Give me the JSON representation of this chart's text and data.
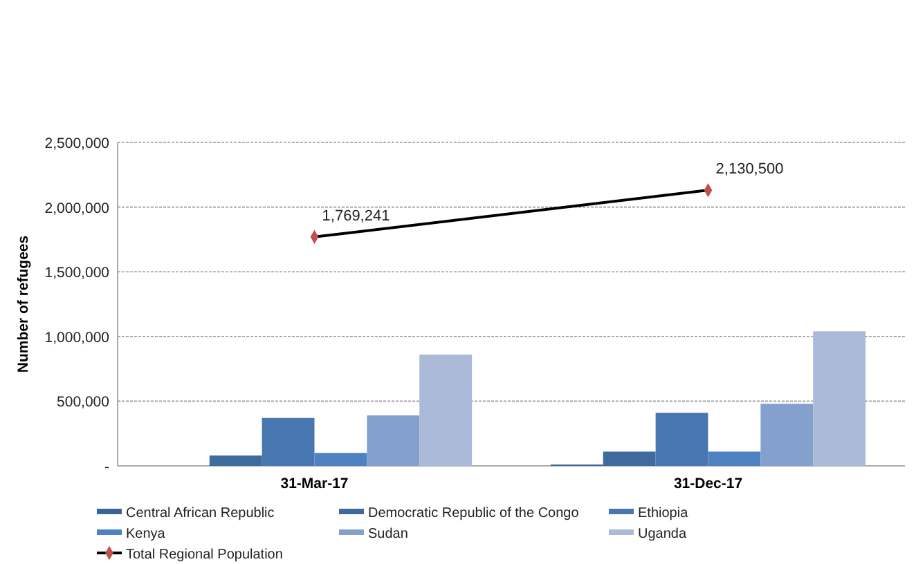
{
  "chart_data": {
    "type": "bar",
    "categories": [
      "31-Mar-17",
      "31-Dec-17"
    ],
    "ylabel": "Number of refugees",
    "ylim": [
      0,
      2500000
    ],
    "yticks": [
      {
        "value": 0,
        "label": "-"
      },
      {
        "value": 500000,
        "label": "500,000"
      },
      {
        "value": 1000000,
        "label": "1,000,000"
      },
      {
        "value": 1500000,
        "label": "1,500,000"
      },
      {
        "value": 2000000,
        "label": "2,000,000"
      },
      {
        "value": 2500000,
        "label": "2,500,000"
      }
    ],
    "grid": "y",
    "legend": "bottom",
    "series": [
      {
        "name": "Central African Republic",
        "color": "#3c6396",
        "values": [
          0,
          10000
        ]
      },
      {
        "name": "Democratic Republic of the Congo",
        "color": "#3f6a9f",
        "values": [
          80000,
          110000
        ]
      },
      {
        "name": "Ethiopia",
        "color": "#4876b0",
        "values": [
          370000,
          410000
        ]
      },
      {
        "name": "Kenya",
        "color": "#4f82c0",
        "values": [
          100000,
          110000
        ]
      },
      {
        "name": "Sudan",
        "color": "#84a0cc",
        "values": [
          390000,
          480000
        ]
      },
      {
        "name": "Uganda",
        "color": "#aabad8",
        "values": [
          860000,
          1040000
        ]
      },
      {
        "name": "Total Regional Population",
        "type": "line",
        "color": "#000000",
        "marker": "diamond",
        "values": [
          1769241,
          2130500
        ],
        "value_labels": [
          "1,769,241",
          "2,130,500"
        ]
      }
    ]
  }
}
